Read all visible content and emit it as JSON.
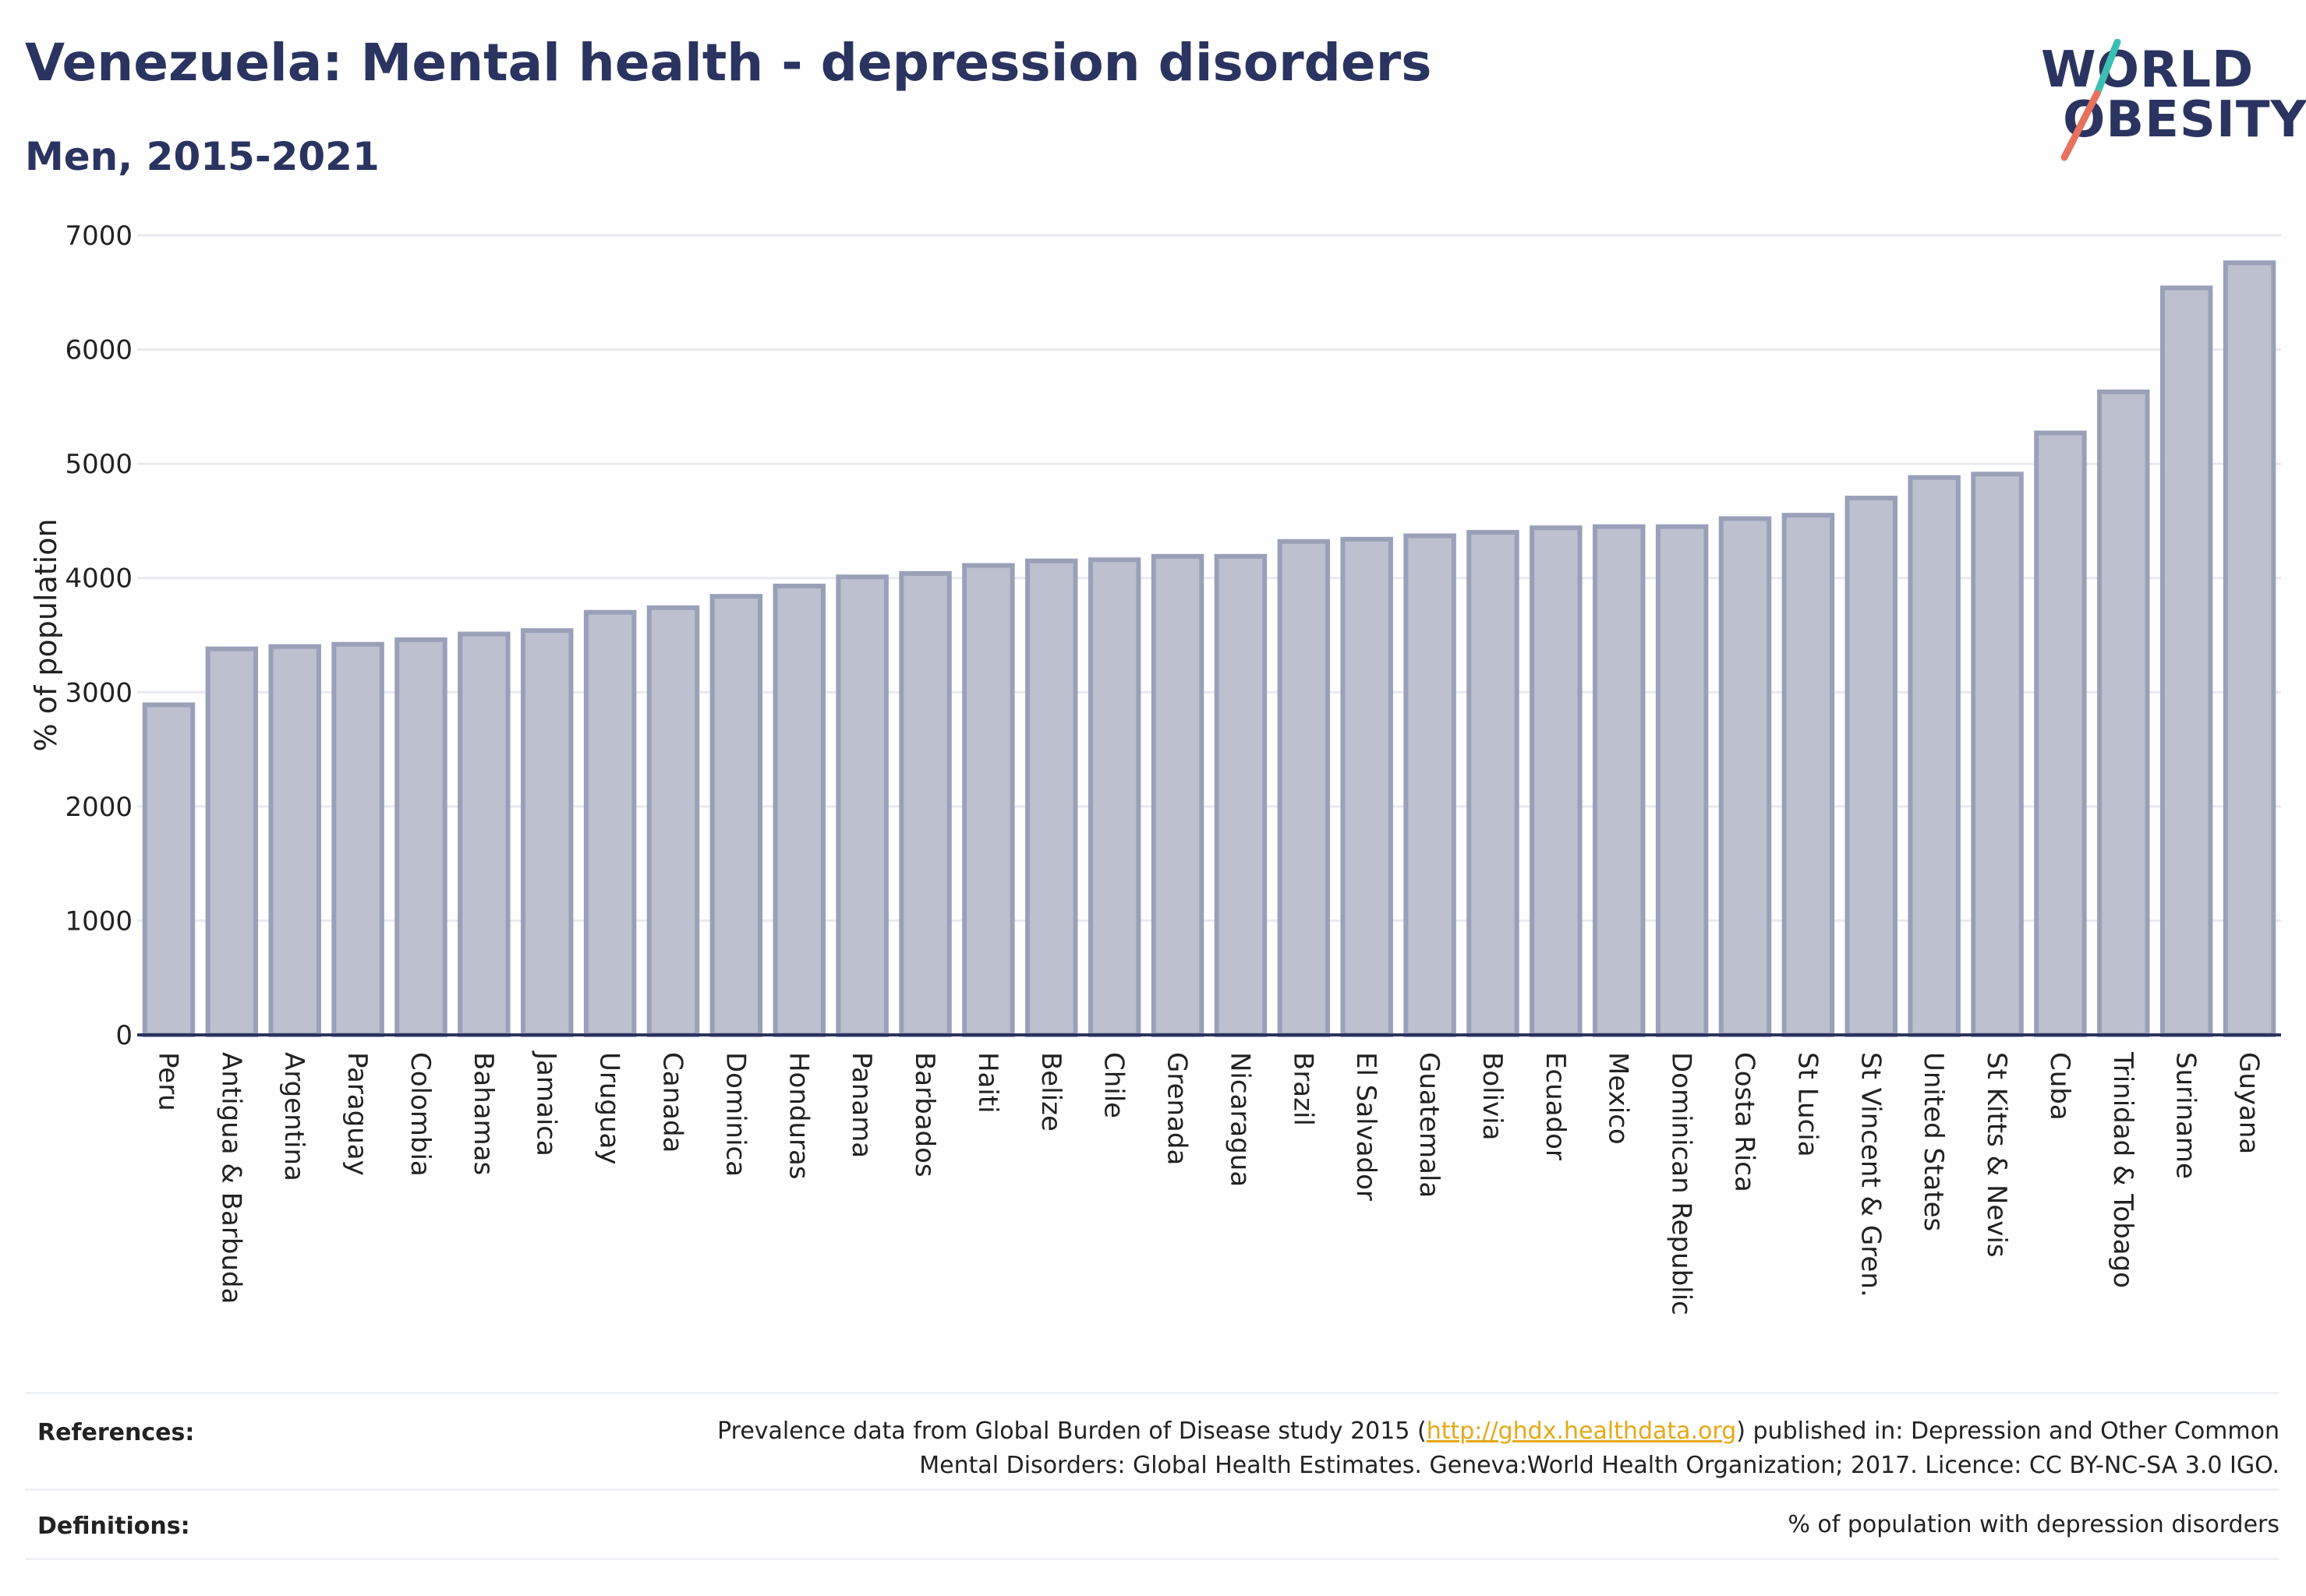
{
  "header": {
    "title": "Venezuela: Mental health - depression disorders",
    "subtitle": "Men, 2015-2021"
  },
  "logo": {
    "line1": "WORLD",
    "line2": "OBESITY",
    "colors": {
      "text": "#2b3460",
      "slash_top": "#3bbfb3",
      "slash_bottom": "#e8715e"
    }
  },
  "chart_data": {
    "type": "bar",
    "title": "",
    "xlabel": "",
    "ylabel": "% of population",
    "ylim": [
      0,
      7000
    ],
    "yticks": [
      0,
      1000,
      2000,
      3000,
      4000,
      5000,
      6000,
      7000
    ],
    "grid": true,
    "bar_fill": "#bcc0cf",
    "bar_stroke": "#9aa0b8",
    "categories": [
      "Peru",
      "Antigua & Barbuda",
      "Argentina",
      "Paraguay",
      "Colombia",
      "Bahamas",
      "Jamaica",
      "Uruguay",
      "Canada",
      "Dominica",
      "Honduras",
      "Panama",
      "Barbados",
      "Haiti",
      "Belize",
      "Chile",
      "Grenada",
      "Nicaragua",
      "Brazil",
      "El Salvador",
      "Guatemala",
      "Bolivia",
      "Ecuador",
      "Mexico",
      "Dominican Republic",
      "Costa Rica",
      "St Lucia",
      "St Vincent & Gren.",
      "United States",
      "St Kitts & Nevis",
      "Cuba",
      "Trinidad & Tobago",
      "Suriname",
      "Guyana"
    ],
    "values": [
      2890,
      3380,
      3400,
      3420,
      3460,
      3510,
      3540,
      3700,
      3740,
      3840,
      3930,
      4010,
      4040,
      4110,
      4150,
      4160,
      4190,
      4190,
      4320,
      4340,
      4370,
      4400,
      4440,
      4450,
      4450,
      4520,
      4550,
      4700,
      4880,
      4910,
      5270,
      5630,
      6540,
      6760
    ]
  },
  "footer": {
    "references_label": "References:",
    "references_text_before": "Prevalence data from Global Burden of Disease study 2015 (",
    "references_link": "http://ghdx.healthdata.org",
    "references_text_after": ") published in: Depression and Other Common",
    "references_line2": "Mental Disorders: Global Health Estimates. Geneva:World Health Organization; 2017. Licence: CC BY-NC-SA 3.0 IGO.",
    "definitions_label": "Definitions:",
    "definitions_text": "% of population with depression disorders"
  }
}
